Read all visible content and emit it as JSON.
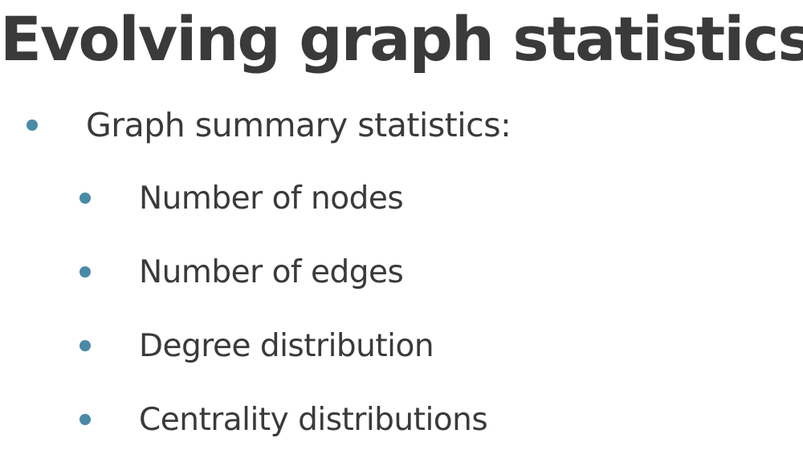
{
  "slide": {
    "title": "Evolving graph statistics",
    "bullets": [
      {
        "label": "Graph summary statistics:",
        "children": [
          {
            "label": "Number of nodes"
          },
          {
            "label": "Number of edges"
          },
          {
            "label": "Degree distribution"
          },
          {
            "label": "Centrality distributions"
          }
        ]
      }
    ]
  },
  "colors": {
    "text": "#3a3a3a",
    "bullet": "#4a8aa6",
    "background": "#ffffff"
  }
}
